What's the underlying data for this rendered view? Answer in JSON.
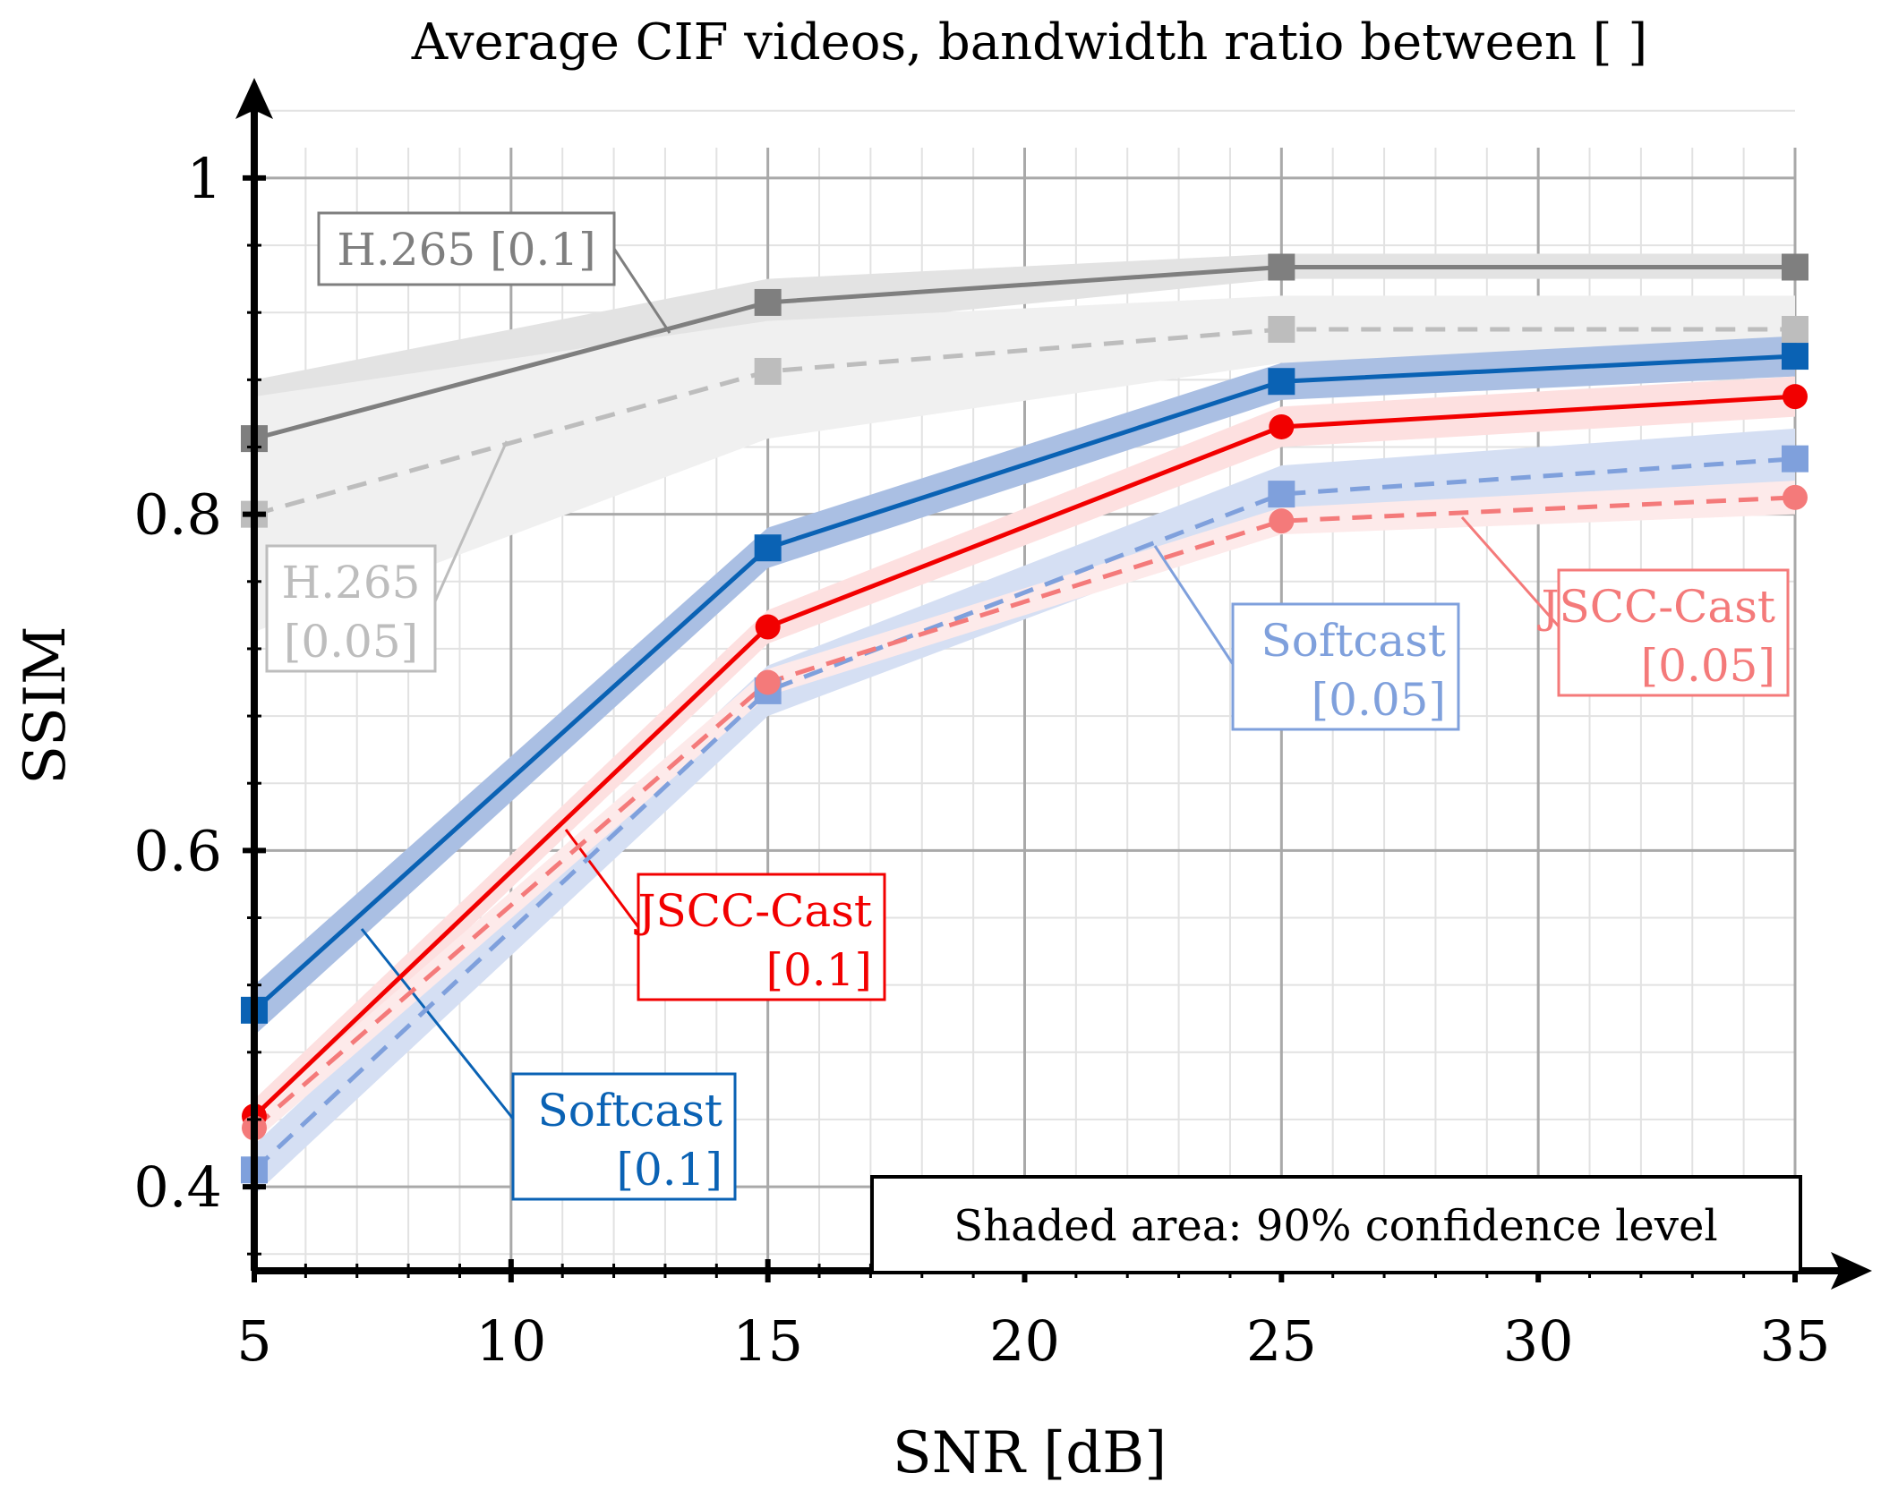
{
  "chart_data": {
    "type": "line",
    "title": "Average CIF videos, bandwidth ratio between [ ]",
    "xlabel": "SNR [dB]",
    "ylabel": "SSIM",
    "xlim": [
      5,
      35
    ],
    "ylim": [
      0.35,
      1.05
    ],
    "xticks": [
      5,
      10,
      15,
      20,
      25,
      30,
      35
    ],
    "xtick_labels": [
      "5",
      "10",
      "15",
      "20",
      "25",
      "30",
      "35"
    ],
    "yticks": [
      0.4,
      0.6,
      0.8,
      1.0
    ],
    "ytick_labels": [
      "0.4",
      "0.6",
      "0.8",
      "1"
    ],
    "grid": true,
    "x": [
      5,
      15,
      25,
      35
    ],
    "series": [
      {
        "name": "H.265 [0.1]",
        "label_lines": [
          "H.265 [0.1]"
        ],
        "values": [
          0.845,
          0.926,
          0.947,
          0.947
        ],
        "ci_low": [
          0.81,
          0.91,
          0.94,
          0.94
        ],
        "ci_high": [
          0.88,
          0.94,
          0.955,
          0.955
        ],
        "color": "#7f7f7f",
        "band": "#e3e3e3",
        "dash": false,
        "marker": "square"
      },
      {
        "name": "H.265 [0.05]",
        "label_lines": [
          "H.265",
          "[0.05]"
        ],
        "values": [
          0.8,
          0.885,
          0.91,
          0.91
        ],
        "ci_low": [
          0.73,
          0.845,
          0.89,
          0.89
        ],
        "ci_high": [
          0.87,
          0.915,
          0.93,
          0.93
        ],
        "color": "#bdbdbd",
        "band": "#f0f0f0",
        "dash": true,
        "marker": "square"
      },
      {
        "name": "Softcast [0.1]",
        "label_lines": [
          "Softcast",
          "[0.1]"
        ],
        "values": [
          0.505,
          0.78,
          0.879,
          0.894
        ],
        "ci_low": [
          0.49,
          0.768,
          0.868,
          0.882
        ],
        "ci_high": [
          0.52,
          0.792,
          0.89,
          0.906
        ],
        "color": "#0a62b4",
        "band": "#aabfe3",
        "dash": false,
        "marker": "square"
      },
      {
        "name": "JSCC-Cast [0.1]",
        "label_lines": [
          "JSCC-Cast",
          "[0.1]"
        ],
        "values": [
          0.442,
          0.733,
          0.852,
          0.87
        ],
        "ci_low": [
          0.432,
          0.723,
          0.84,
          0.858
        ],
        "ci_high": [
          0.452,
          0.743,
          0.864,
          0.882
        ],
        "color": "#f20000",
        "band": "#fde0e0",
        "dash": false,
        "marker": "circle"
      },
      {
        "name": "Softcast [0.05]",
        "label_lines": [
          "Softcast",
          "[0.05]"
        ],
        "values": [
          0.41,
          0.695,
          0.812,
          0.833
        ],
        "ci_low": [
          0.395,
          0.68,
          0.795,
          0.815
        ],
        "ci_high": [
          0.425,
          0.71,
          0.829,
          0.851
        ],
        "color": "#7fa0dc",
        "band": "#d5dff3",
        "dash": true,
        "marker": "square"
      },
      {
        "name": "JSCC-Cast [0.05]",
        "label_lines": [
          "JSCC-Cast",
          "[0.05]"
        ],
        "values": [
          0.435,
          0.7,
          0.796,
          0.81
        ],
        "ci_low": [
          0.427,
          0.692,
          0.788,
          0.8
        ],
        "ci_high": [
          0.443,
          0.708,
          0.804,
          0.82
        ],
        "color": "#f47a7a",
        "band": "#fdeaea",
        "dash": true,
        "marker": "circle"
      }
    ],
    "annotation": "Shaded area: 90% confidence level"
  }
}
